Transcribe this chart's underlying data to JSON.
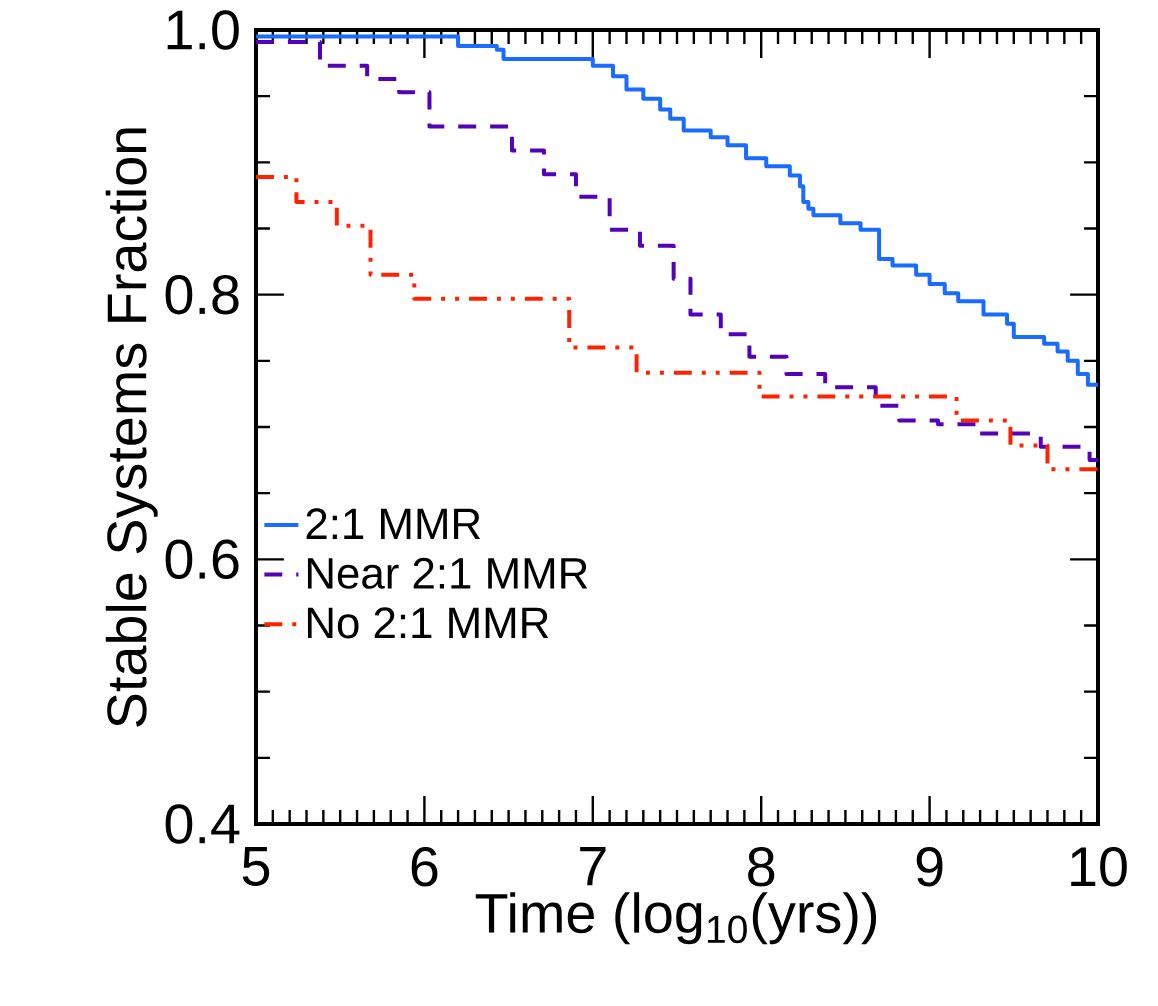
{
  "chart_data": {
    "type": "step",
    "xlabel": "Time (log$_{10}$(yrs))",
    "ylabel": "Stable Systems Fraction",
    "xlim": [
      5,
      10
    ],
    "ylim": [
      0.4,
      1.0
    ],
    "xticks": [
      5,
      6,
      7,
      8,
      9,
      10
    ],
    "yticks": [
      0.4,
      0.6,
      0.8,
      {
        "value": 1.0,
        "label": "1.0"
      }
    ],
    "legend": "bottom left",
    "grid": false,
    "marker": "none",
    "series": [
      {
        "name": "2:1 MMR",
        "color": "#1a6bff",
        "line_style": "solid",
        "x": [
          5,
          6.2,
          6.43,
          6.47,
          7.0,
          7.12,
          7.2,
          7.3,
          7.4,
          7.46,
          7.54,
          7.7,
          7.8,
          7.91,
          8.03,
          8.17,
          8.23,
          8.25,
          8.28,
          8.31,
          8.47,
          8.59,
          8.7,
          8.78,
          8.92,
          9.0,
          9.09,
          9.17,
          9.32,
          9.46,
          9.5,
          9.68,
          9.76,
          9.82,
          9.88,
          9.94,
          10
        ],
        "values": [
          0.995,
          0.988,
          0.985,
          0.978,
          0.973,
          0.965,
          0.955,
          0.948,
          0.94,
          0.933,
          0.924,
          0.919,
          0.913,
          0.903,
          0.897,
          0.89,
          0.882,
          0.87,
          0.865,
          0.86,
          0.854,
          0.849,
          0.827,
          0.822,
          0.815,
          0.808,
          0.801,
          0.795,
          0.785,
          0.778,
          0.768,
          0.763,
          0.757,
          0.75,
          0.74,
          0.732,
          0.732
        ]
      },
      {
        "name": "Near 2:1 MMR",
        "color": "#5500bb",
        "line_style": "dashed",
        "x": [
          5,
          5.38,
          5.66,
          5.85,
          6.03,
          6.52,
          6.71,
          6.9,
          7.1,
          7.28,
          7.48,
          7.58,
          7.76,
          7.93,
          8.15,
          8.38,
          8.68,
          8.82,
          9.05,
          9.28,
          9.66,
          9.95,
          10
        ],
        "values": [
          0.991,
          0.973,
          0.963,
          0.953,
          0.927,
          0.909,
          0.891,
          0.874,
          0.849,
          0.837,
          0.812,
          0.785,
          0.77,
          0.753,
          0.74,
          0.73,
          0.716,
          0.705,
          0.702,
          0.695,
          0.685,
          0.675,
          0.675
        ]
      },
      {
        "name": "No 2:1 MMR",
        "color": "#ff2200",
        "line_style": "dashdotdotted",
        "x": [
          5,
          5.24,
          5.48,
          5.68,
          5.94,
          6.86,
          7.26,
          7.99,
          9.16,
          9.48,
          9.7,
          10
        ],
        "values": [
          0.889,
          0.87,
          0.852,
          0.815,
          0.797,
          0.76,
          0.741,
          0.723,
          0.705,
          0.686,
          0.668,
          0.668
        ]
      }
    ]
  }
}
